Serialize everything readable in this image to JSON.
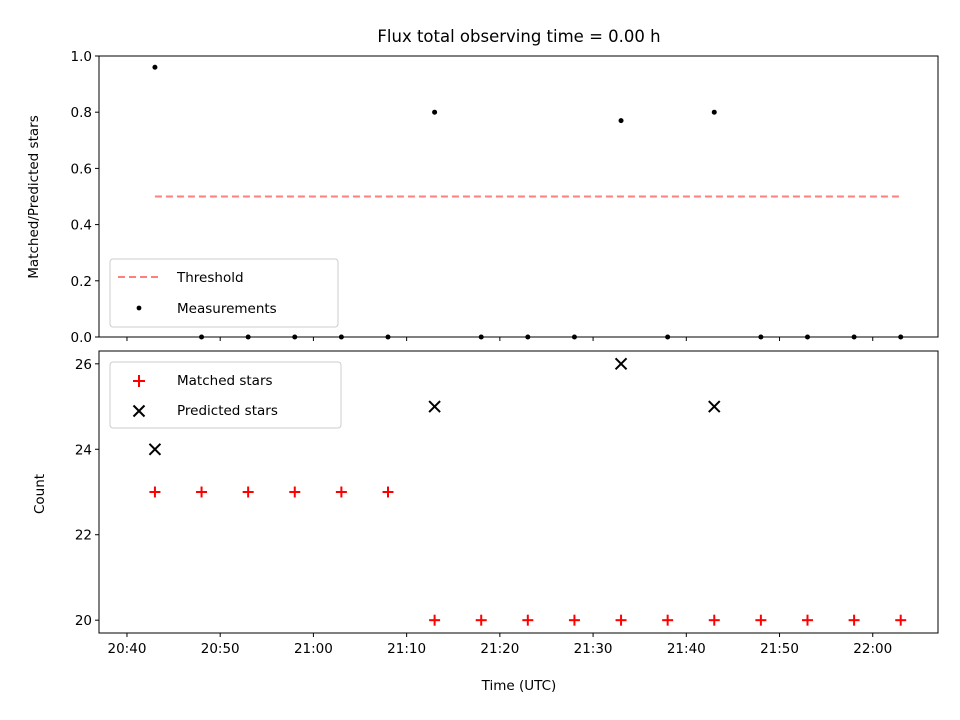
{
  "chart_data": [
    {
      "type": "scatter",
      "title": "Flux total observing time = 0.00 h",
      "xlabel": "",
      "ylabel": "Matched/Predicted stars",
      "ylim": [
        0.0,
        1.0
      ],
      "yticks": [
        "0.0",
        "0.2",
        "0.4",
        "0.6",
        "0.8",
        "1.0"
      ],
      "threshold": {
        "name": "Threshold",
        "value": 0.5,
        "x_start": "20:43",
        "x_end": "22:03",
        "color": "#ff7f7f"
      },
      "series": [
        {
          "name": "Measurements",
          "color": "#000000",
          "marker": "dot",
          "x": [
            "20:43",
            "20:48",
            "20:53",
            "20:58",
            "21:03",
            "21:08",
            "21:13",
            "21:18",
            "21:23",
            "21:28",
            "21:33",
            "21:38",
            "21:43",
            "21:48",
            "21:53",
            "21:58",
            "22:03"
          ],
          "values": [
            0.96,
            0.0,
            0.0,
            0.0,
            0.0,
            0.0,
            0.8,
            0.0,
            0.0,
            0.0,
            0.77,
            0.0,
            0.8,
            0.0,
            0.0,
            0.0,
            0.0
          ]
        }
      ],
      "legend_placement": "lower-left",
      "grid": false
    },
    {
      "type": "scatter",
      "title": "",
      "xlabel": "Time (UTC)",
      "ylabel": "Count",
      "ylim": [
        19.7,
        26.3
      ],
      "yticks": [
        "20",
        "22",
        "24",
        "26"
      ],
      "xticks": [
        "20:40",
        "20:50",
        "21:00",
        "21:10",
        "21:20",
        "21:30",
        "21:40",
        "21:50",
        "22:00"
      ],
      "xlim": [
        "20:37",
        "22:07"
      ],
      "series": [
        {
          "name": "Matched stars",
          "color": "#ff0000",
          "marker": "plus",
          "x": [
            "20:43",
            "20:48",
            "20:53",
            "20:58",
            "21:03",
            "21:08",
            "21:13",
            "21:18",
            "21:23",
            "21:28",
            "21:33",
            "21:38",
            "21:43",
            "21:48",
            "21:53",
            "21:58",
            "22:03"
          ],
          "values": [
            23,
            23,
            23,
            23,
            23,
            23,
            20,
            20,
            20,
            20,
            20,
            20,
            20,
            20,
            20,
            20,
            20
          ]
        },
        {
          "name": "Predicted stars",
          "color": "#000000",
          "marker": "x",
          "x": [
            "20:43",
            "21:13",
            "21:33",
            "21:43"
          ],
          "values": [
            24,
            25,
            26,
            25
          ]
        }
      ],
      "legend_placement": "upper-left",
      "grid": false
    }
  ]
}
